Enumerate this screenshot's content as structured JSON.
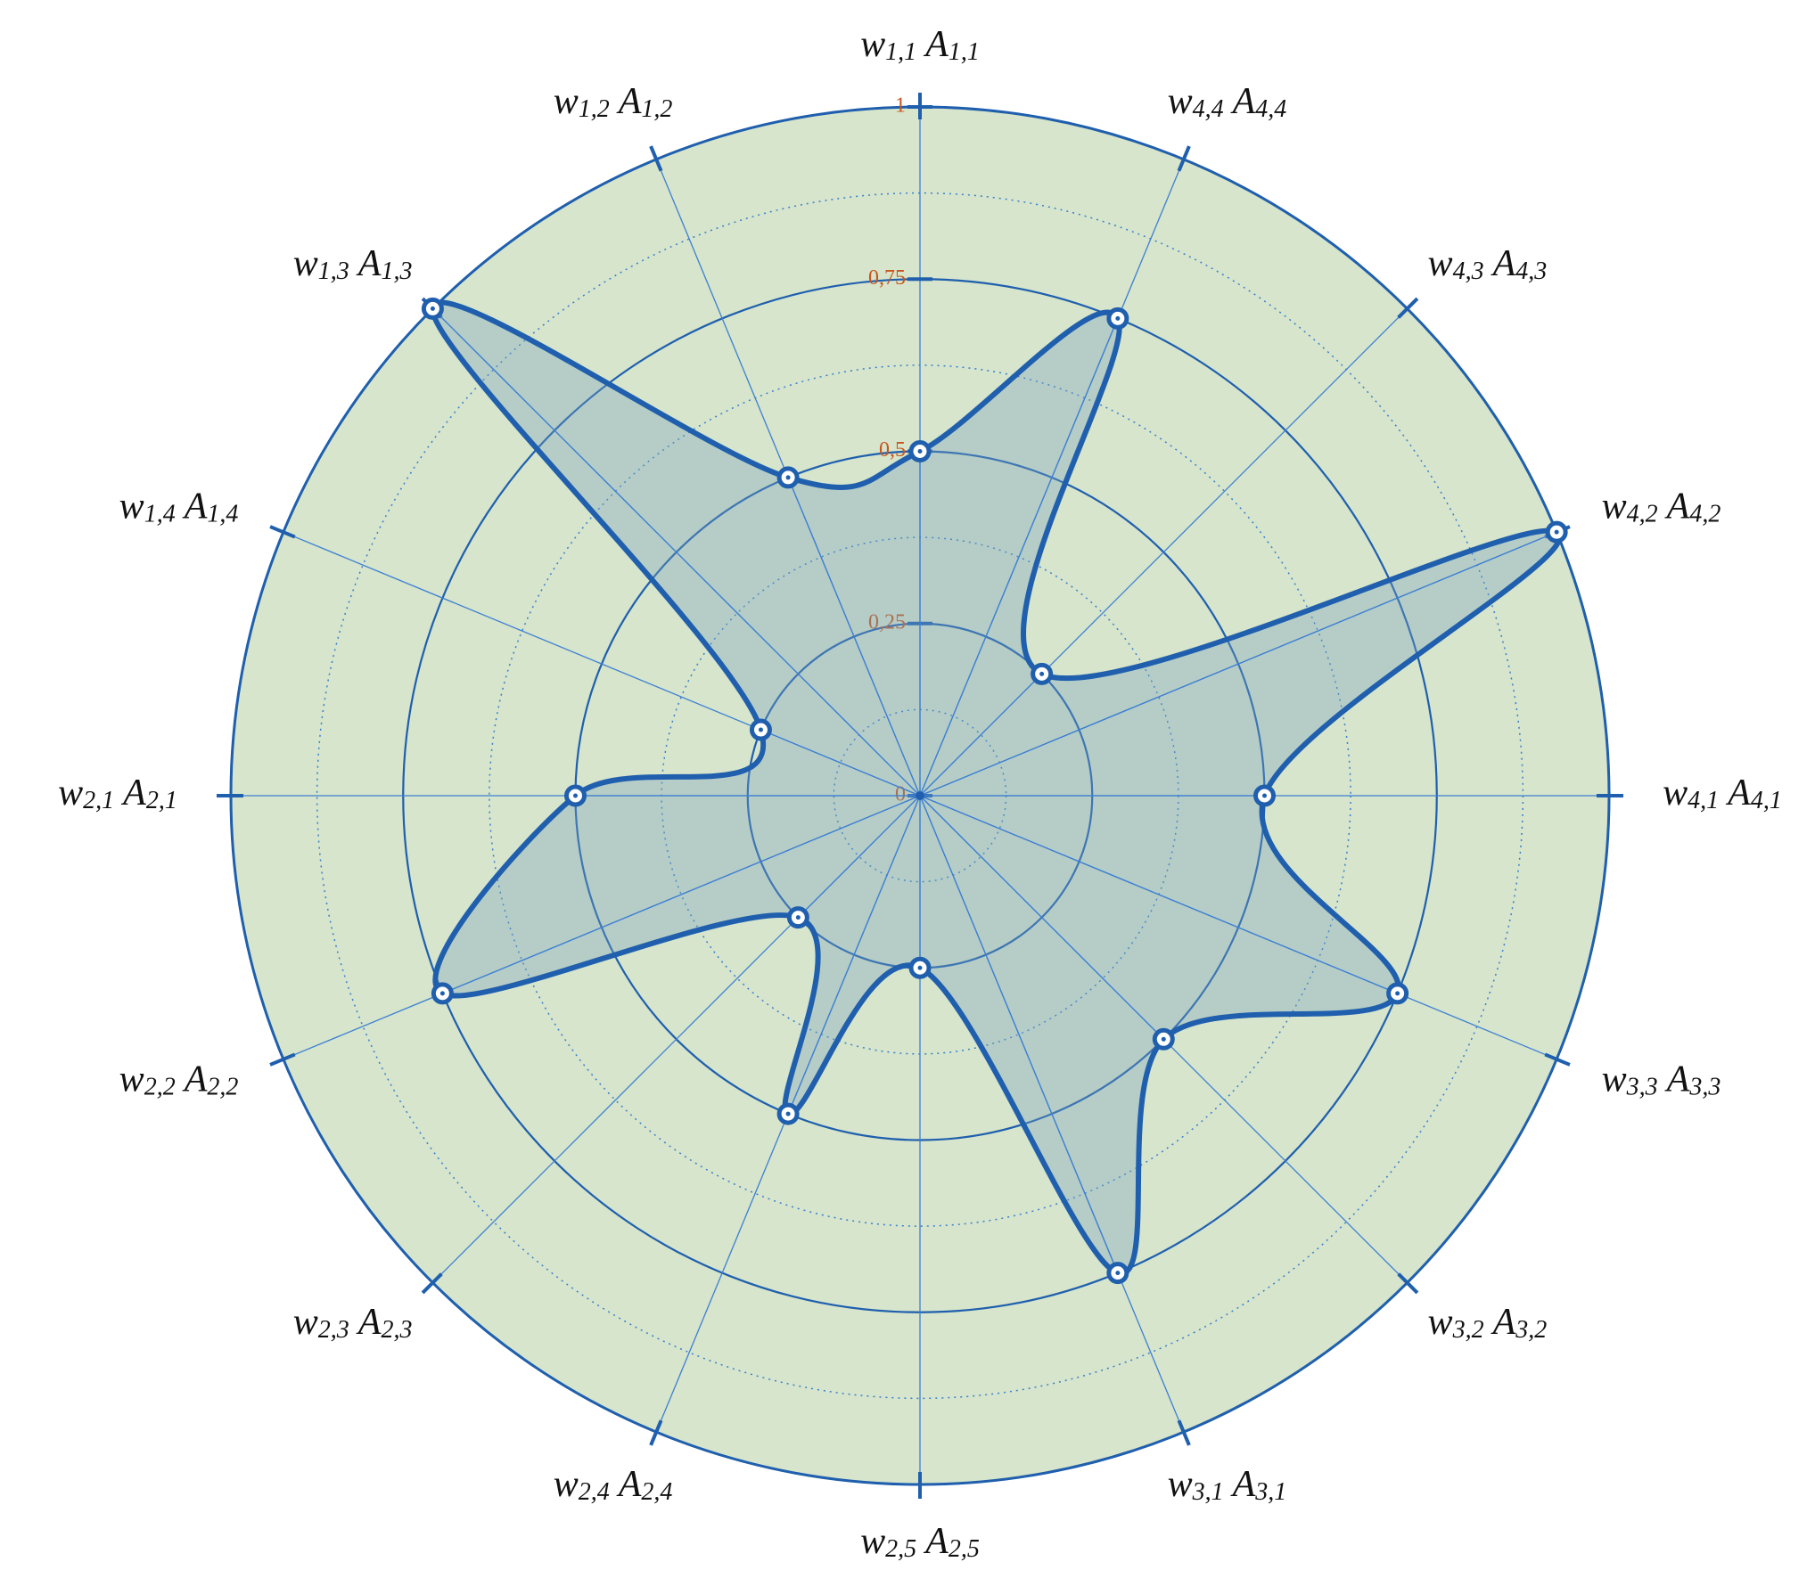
{
  "chart_data": {
    "type": "radar",
    "categories": [
      [
        "w",
        "1,1",
        "A",
        "1,1"
      ],
      [
        "w",
        "1,2",
        "A",
        "1,2"
      ],
      [
        "w",
        "1,3",
        "A",
        "1,3"
      ],
      [
        "w",
        "1,4",
        "A",
        "1,4"
      ],
      [
        "w",
        "2,1",
        "A",
        "2,1"
      ],
      [
        "w",
        "2,2",
        "A",
        "2,2"
      ],
      [
        "w",
        "2,3",
        "A",
        "2,3"
      ],
      [
        "w",
        "2,4",
        "A",
        "2,4"
      ],
      [
        "w",
        "2,5",
        "A",
        "2,5"
      ],
      [
        "w",
        "3,1",
        "A",
        "3,1"
      ],
      [
        "w",
        "3,2",
        "A",
        "3,2"
      ],
      [
        "w",
        "3,3",
        "A",
        "3,3"
      ],
      [
        "w",
        "4,1",
        "A",
        "4,1"
      ],
      [
        "w",
        "4,2",
        "A",
        "4,2"
      ],
      [
        "w",
        "4,3",
        "A",
        "4,3"
      ],
      [
        "w",
        "4,4",
        "A",
        "4,4"
      ]
    ],
    "values": [
      0.5,
      0.5,
      1.0,
      0.25,
      0.5,
      0.75,
      0.25,
      0.5,
      0.25,
      0.75,
      0.5,
      0.75,
      0.5,
      1.0,
      0.25,
      0.75
    ],
    "color": "#1f5fae",
    "ylim": [
      0,
      1
    ],
    "yticks": [
      0,
      {
        "value": 0.25,
        "label": "0,25"
      },
      {
        "value": 0.5,
        "label": "0,5"
      },
      {
        "value": 0.75,
        "label": "0,75"
      },
      1
    ],
    "grid": true
  }
}
